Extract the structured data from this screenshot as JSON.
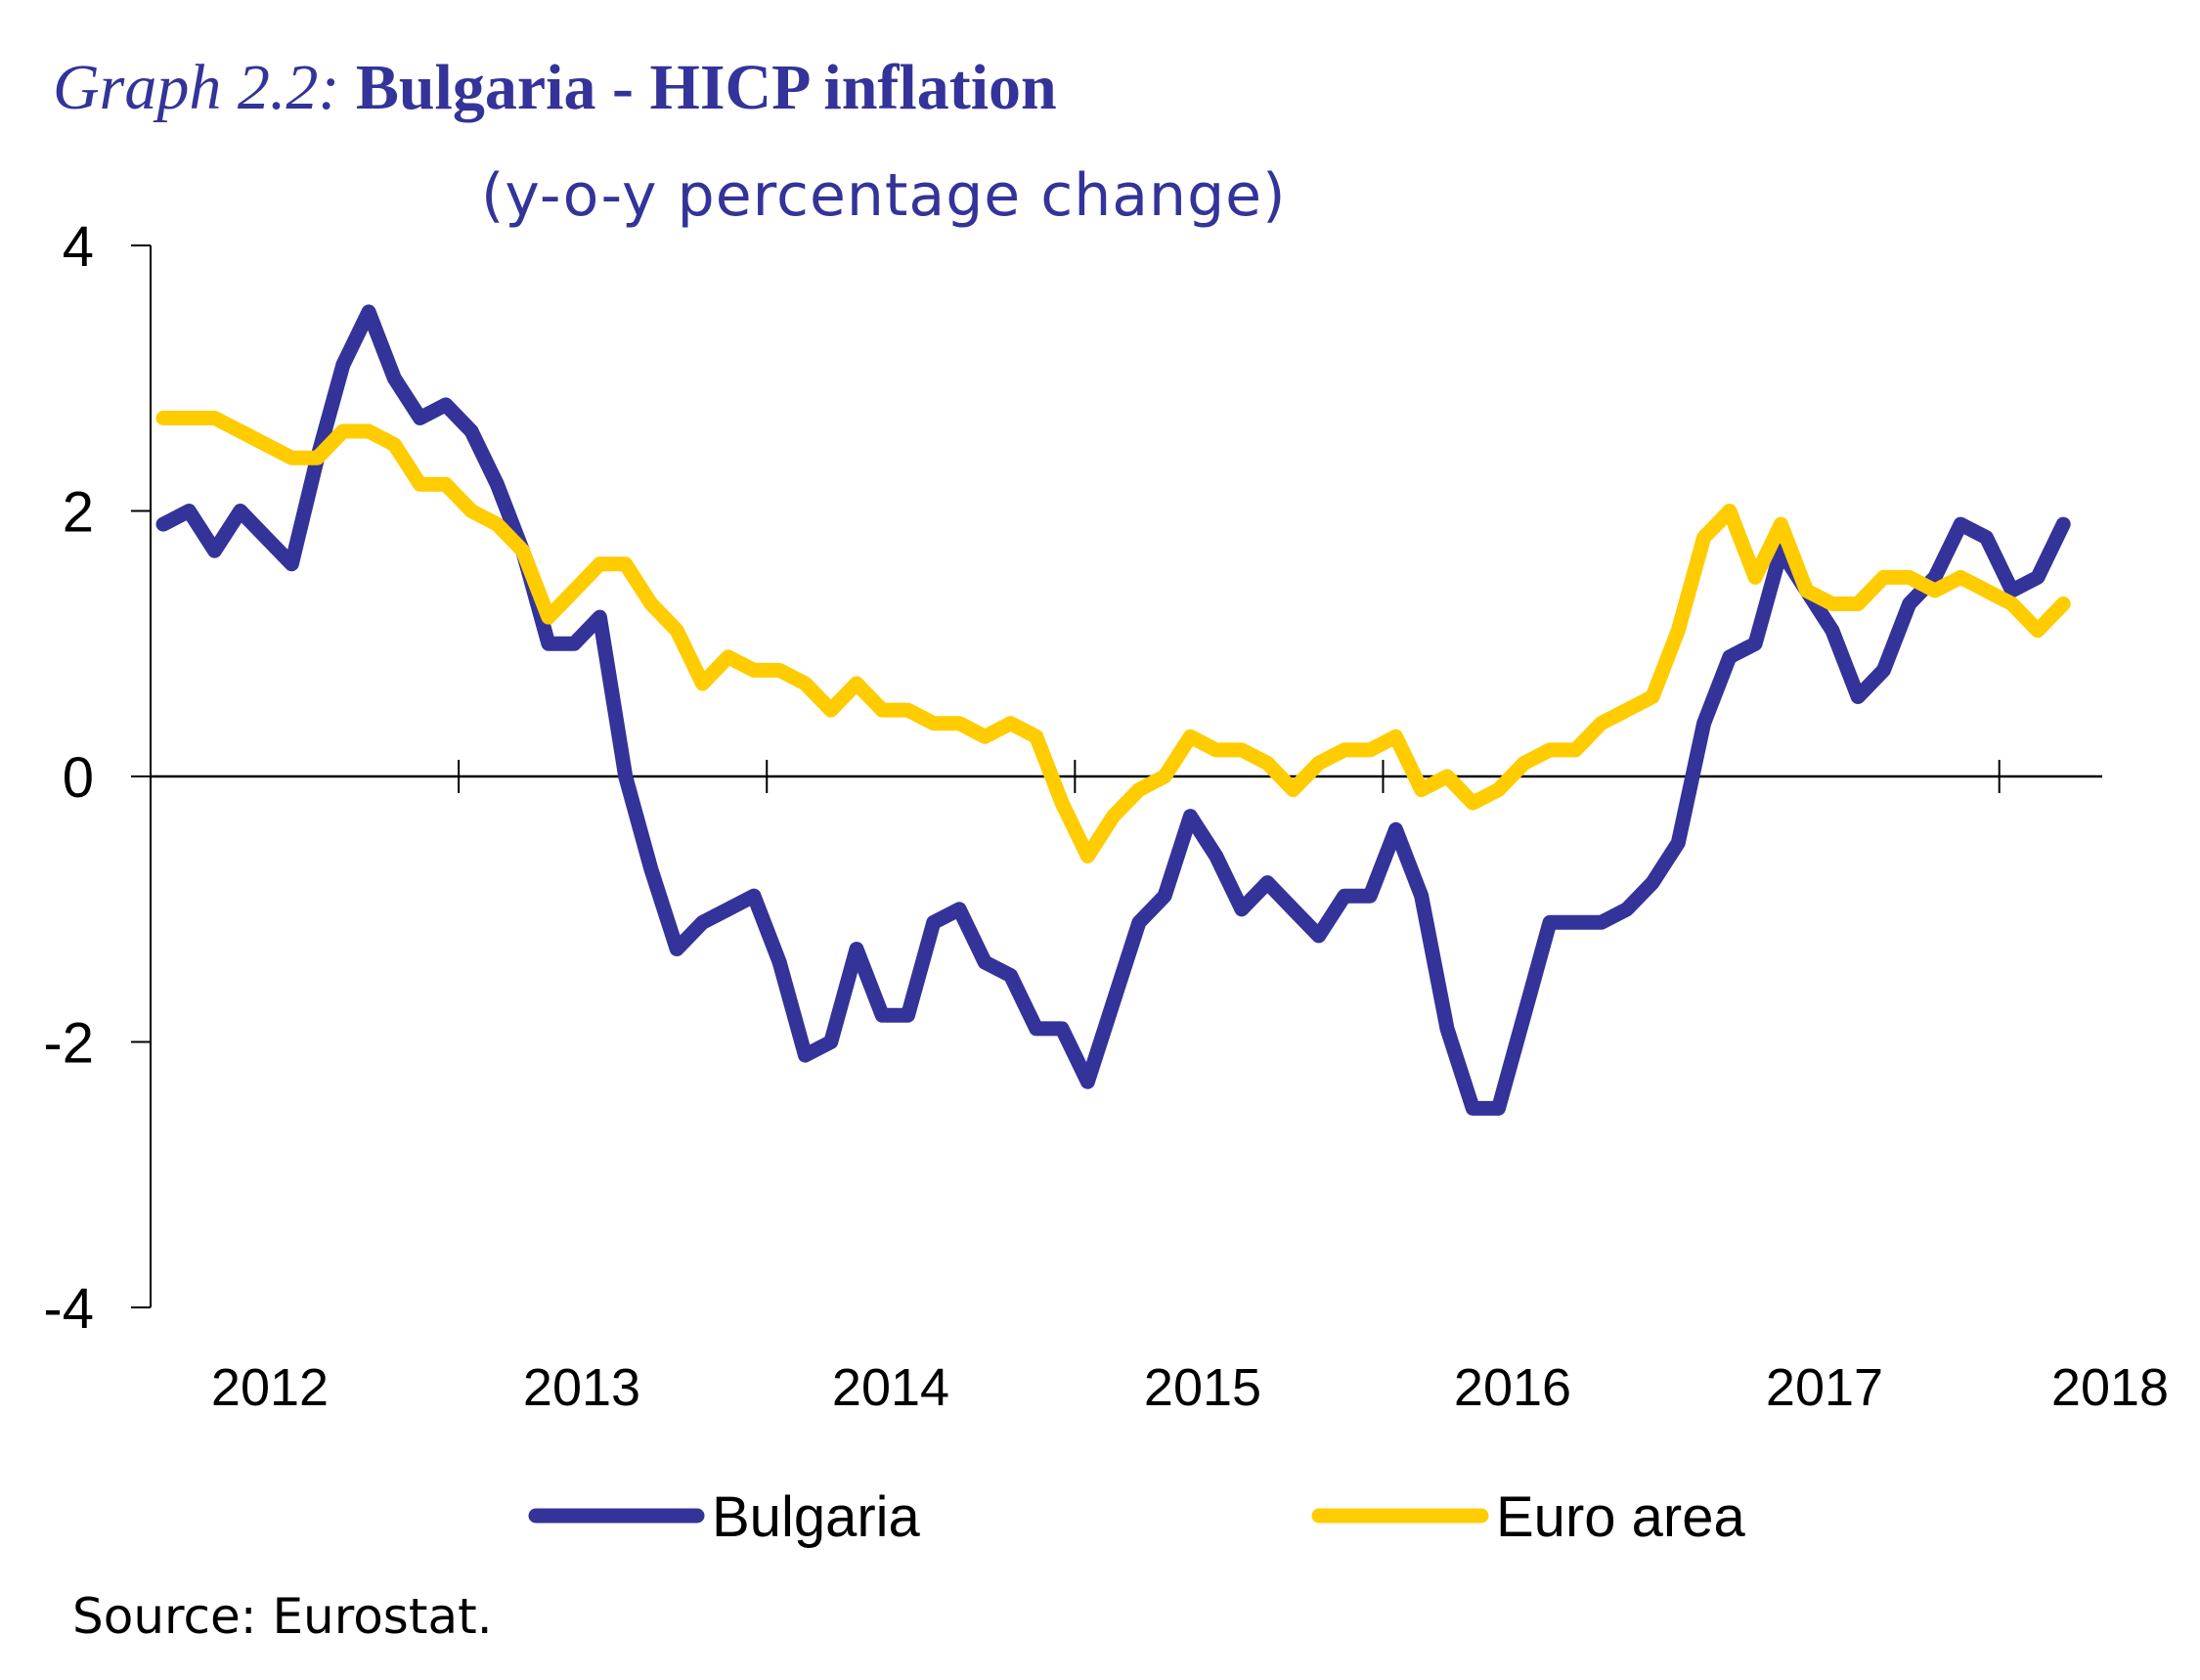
{
  "title": {
    "prefix": "Graph 2.2:",
    "main": "Bulgaria - HICP inflation"
  },
  "subtitle": "(y-o-y percentage change)",
  "source": "Source: Eurostat.",
  "colors": {
    "title": "#333399",
    "bulgaria": "#333399",
    "euro_area": "#FFCC00",
    "axis": "#000000"
  },
  "chart_data": {
    "type": "line",
    "title": "Graph 2.2: Bulgaria - HICP inflation",
    "subtitle": "(y-o-y percentage change)",
    "xlabel": "",
    "ylabel": "",
    "frequency": "monthly",
    "x_start": "2012-01",
    "x_end": "2018-03",
    "x_tick_labels": [
      "2012",
      "2013",
      "2014",
      "2015",
      "2016",
      "2017",
      "2018"
    ],
    "y_tick_labels": [
      "4",
      "2",
      "0",
      "-2",
      "-4"
    ],
    "y_ticks": [
      4,
      2,
      0,
      -2,
      -4
    ],
    "ylim": [
      -4,
      4
    ],
    "grid": false,
    "legend_position": "bottom",
    "series": [
      {
        "name": "Bulgaria",
        "color": "#333399",
        "values": [
          1.9,
          2.0,
          1.7,
          2.0,
          1.8,
          1.6,
          2.4,
          3.1,
          3.5,
          3.0,
          2.7,
          2.8,
          2.6,
          2.2,
          1.7,
          1.0,
          1.0,
          1.2,
          0.0,
          -0.7,
          -1.3,
          -1.1,
          -1.0,
          -0.9,
          -1.4,
          -2.1,
          -2.0,
          -1.3,
          -1.8,
          -1.8,
          -1.1,
          -1.0,
          -1.4,
          -1.5,
          -1.9,
          -1.9,
          -2.3,
          -1.7,
          -1.1,
          -0.9,
          -0.3,
          -0.6,
          -1.0,
          -0.8,
          -1.0,
          -1.2,
          -0.9,
          -0.9,
          -0.4,
          -0.9,
          -1.9,
          -2.5,
          -2.5,
          -1.8,
          -1.1,
          -1.1,
          -1.1,
          -1.0,
          -0.8,
          -0.5,
          0.4,
          0.9,
          1.0,
          1.7,
          1.4,
          1.1,
          0.6,
          0.8,
          1.3,
          1.5,
          1.9,
          1.8,
          1.4,
          1.5,
          1.9
        ]
      },
      {
        "name": "Euro area",
        "color": "#FFCC00",
        "values": [
          2.7,
          2.7,
          2.7,
          2.6,
          2.5,
          2.4,
          2.4,
          2.6,
          2.6,
          2.5,
          2.2,
          2.2,
          2.0,
          1.9,
          1.7,
          1.2,
          1.4,
          1.6,
          1.6,
          1.3,
          1.1,
          0.7,
          0.9,
          0.8,
          0.8,
          0.7,
          0.5,
          0.7,
          0.5,
          0.5,
          0.4,
          0.4,
          0.3,
          0.4,
          0.3,
          -0.2,
          -0.6,
          -0.3,
          -0.1,
          0.0,
          0.3,
          0.2,
          0.2,
          0.1,
          -0.1,
          0.1,
          0.2,
          0.2,
          0.3,
          -0.1,
          0.0,
          -0.2,
          -0.1,
          0.1,
          0.2,
          0.2,
          0.4,
          0.5,
          0.6,
          1.1,
          1.8,
          2.0,
          1.5,
          1.9,
          1.4,
          1.3,
          1.3,
          1.5,
          1.5,
          1.4,
          1.5,
          1.4,
          1.3,
          1.1,
          1.3
        ]
      }
    ]
  }
}
